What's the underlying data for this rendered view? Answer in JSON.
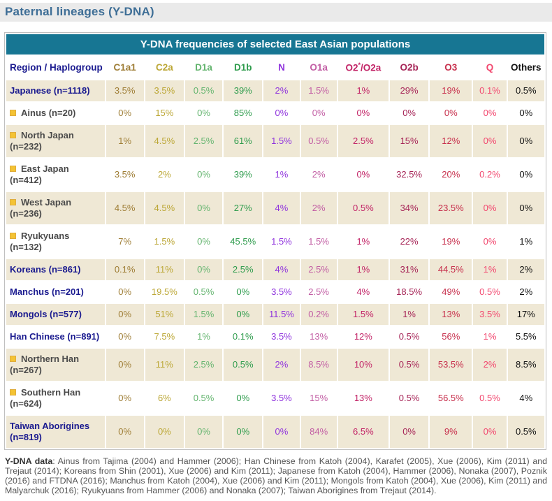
{
  "page_title": "Paternal lineages (Y-DNA)",
  "colors": {
    "title_text": "#3E6E96",
    "title_band_bg": "#EAEAEA",
    "table_header_bg": "#177693",
    "row_beige": "#EFE8D5",
    "main_row_label": "#1A1A8F",
    "sub_row_label": "#4A4A4A",
    "bullet": "#F4C334",
    "footnote_text": "#555555"
  },
  "table": {
    "caption": "Y-DNA frequencies of selected East Asian populations",
    "region_header": "Region / Haplogroup",
    "columns": [
      {
        "id": "c1a1",
        "label": "C1a1",
        "color": "#9E7D35"
      },
      {
        "id": "c2a",
        "label": "C2a",
        "color": "#BCA736"
      },
      {
        "id": "d1a",
        "label": "D1a",
        "color": "#63B46E"
      },
      {
        "id": "d1b",
        "label": "D1b",
        "color": "#2F9C4D"
      },
      {
        "id": "n",
        "label": "N",
        "color": "#8F33DD"
      },
      {
        "id": "o1a",
        "label": "O1a",
        "color": "#C25EA4"
      },
      {
        "id": "o2-o2a",
        "label": "O2*/O2a",
        "color": "#C22366",
        "parts": {
          "pre": "O2",
          "sup": "*",
          "post": "/O2a"
        }
      },
      {
        "id": "o2b",
        "label": "O2b",
        "color": "#A62557"
      },
      {
        "id": "o3",
        "label": "O3",
        "color": "#C72F4C"
      },
      {
        "id": "q",
        "label": "Q",
        "color": "#F2486F"
      },
      {
        "id": "others",
        "label": "Others",
        "color": "#111111"
      }
    ],
    "rows": [
      {
        "region": "Japanese (n=1118)",
        "type": "main",
        "shade": "beige",
        "values": [
          "3.5%",
          "3.5%",
          "0.5%",
          "39%",
          "2%",
          "1.5%",
          "1%",
          "29%",
          "19%",
          "0.1%",
          "0.5%"
        ]
      },
      {
        "region": "Ainus (n=20)",
        "type": "sub",
        "shade": "white",
        "values": [
          "0%",
          "15%",
          "0%",
          "85%",
          "0%",
          "0%",
          "0%",
          "0%",
          "0%",
          "0%",
          "0%"
        ]
      },
      {
        "region": "North Japan (n=232)",
        "type": "sub",
        "shade": "beige",
        "values": [
          "1%",
          "4.5%",
          "2.5%",
          "61%",
          "1.5%",
          "0.5%",
          "2.5%",
          "15%",
          "12%",
          "0%",
          "0%"
        ]
      },
      {
        "region": "East Japan (n=412)",
        "type": "sub",
        "shade": "white",
        "values": [
          "3.5%",
          "2%",
          "0%",
          "39%",
          "1%",
          "2%",
          "0%",
          "32.5%",
          "20%",
          "0.2%",
          "0%"
        ]
      },
      {
        "region": "West Japan (n=236)",
        "type": "sub",
        "shade": "beige",
        "values": [
          "4.5%",
          "4.5%",
          "0%",
          "27%",
          "4%",
          "2%",
          "0.5%",
          "34%",
          "23.5%",
          "0%",
          "0%"
        ]
      },
      {
        "region": "Ryukyuans (n=132)",
        "type": "sub",
        "shade": "white",
        "values": [
          "7%",
          "1.5%",
          "0%",
          "45.5%",
          "1.5%",
          "1.5%",
          "1%",
          "22%",
          "19%",
          "0%",
          "1%"
        ]
      },
      {
        "region": "Koreans (n=861)",
        "type": "main",
        "shade": "beige",
        "values": [
          "0.1%",
          "11%",
          "0%",
          "2.5%",
          "4%",
          "2.5%",
          "1%",
          "31%",
          "44.5%",
          "1%",
          "2%"
        ]
      },
      {
        "region": "Manchus (n=201)",
        "type": "main",
        "shade": "white",
        "values": [
          "0%",
          "19.5%",
          "0.5%",
          "0%",
          "3.5%",
          "2.5%",
          "4%",
          "18.5%",
          "49%",
          "0.5%",
          "2%"
        ]
      },
      {
        "region": "Mongols (n=577)",
        "type": "main",
        "shade": "beige",
        "values": [
          "0%",
          "51%",
          "1.5%",
          "0%",
          "11.5%",
          "0.2%",
          "1.5%",
          "1%",
          "13%",
          "3.5%",
          "17%"
        ]
      },
      {
        "region": "Han Chinese (n=891)",
        "type": "main",
        "shade": "white",
        "values": [
          "0%",
          "7.5%",
          "1%",
          "0.1%",
          "3.5%",
          "13%",
          "12%",
          "0.5%",
          "56%",
          "1%",
          "5.5%"
        ]
      },
      {
        "region": "Northern Han (n=267)",
        "type": "sub",
        "shade": "beige",
        "values": [
          "0%",
          "11%",
          "2.5%",
          "0.5%",
          "2%",
          "8.5%",
          "10%",
          "0.5%",
          "53.5%",
          "2%",
          "8.5%"
        ]
      },
      {
        "region": "Southern Han (n=624)",
        "type": "sub",
        "shade": "white",
        "values": [
          "0%",
          "6%",
          "0.5%",
          "0%",
          "3.5%",
          "15%",
          "13%",
          "0.5%",
          "56.5%",
          "0.5%",
          "4%"
        ]
      },
      {
        "region": "Taiwan Aborigines (n=819)",
        "type": "main",
        "shade": "beige",
        "values": [
          "0%",
          "0%",
          "0%",
          "0%",
          "0%",
          "84%",
          "6.5%",
          "0%",
          "9%",
          "0%",
          "0.5%"
        ]
      }
    ]
  },
  "footnote": {
    "label": "Y-DNA data",
    "text": ": Ainus from Tajima (2004) and Hammer (2006); Han Chinese from Katoh (2004), Karafet (2005), Xue (2006), Kim (2011) and Trejaut (2014); Koreans from Shin (2001), Xue (2006) and Kim (2011); Japanese from Katoh (2004), Hammer (2006), Nonaka (2007), Poznik (2016) and FTDNA (2016); Manchus from Katoh (2004), Xue (2006) and Kim (2011); Mongols from Katoh (2004), Xue (2006), Kim (2011) and Malyarchuk (2016); Ryukyuans from Hammer (2006) and Nonaka (2007); Taiwan Aborigines from Trejaut (2014)."
  }
}
